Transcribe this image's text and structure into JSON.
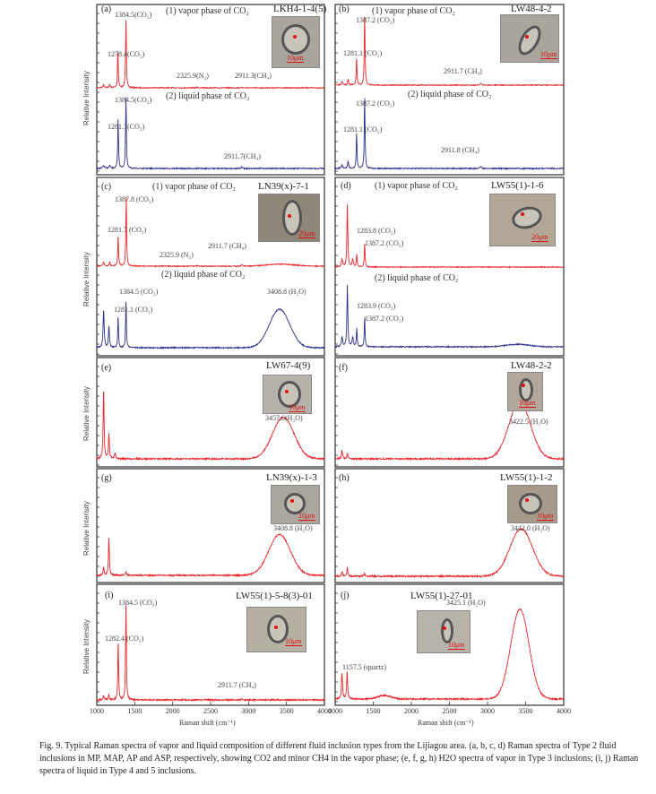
{
  "colors": {
    "vapor": "#e8262a",
    "liquid": "#2d2d8c",
    "frame": "#333333"
  },
  "axis": {
    "xlabel": "Raman shift (cm⁻¹)",
    "ylabel": "Relative Intensity",
    "xticks": [
      "1000",
      "1500",
      "2000",
      "2500",
      "3000",
      "3500",
      "4000"
    ]
  },
  "chart_data": [
    {
      "panel": "(a)",
      "type": "line",
      "sample": "LKH4-1-4(5)",
      "xlim": [
        1000,
        4000
      ],
      "traces": [
        {
          "name": "(1) vapor phase of CO₂",
          "color": "vapor",
          "peaks": [
            [
              1090,
              0.04,
              12
            ],
            [
              1170,
              0.04,
              10
            ],
            [
              1278.4,
              0.55,
              6
            ],
            [
              1384.5,
              1.0,
              6
            ],
            [
              2325.9,
              0.01,
              8
            ],
            [
              2911.3,
              0.01,
              8
            ]
          ],
          "labels": [
            "1384.5(CO₂)",
            "1278.4(CO₂)",
            "2325.9(N₂)",
            "2911.3(CH₄)"
          ]
        },
        {
          "name": "(2) liquid phase of CO₂",
          "color": "liquid",
          "peaks": [
            [
              1090,
              0.04,
              12
            ],
            [
              1170,
              0.04,
              10
            ],
            [
              1281.1,
              0.7,
              6
            ],
            [
              1384.5,
              1.0,
              6
            ],
            [
              2911.7,
              0.02,
              8
            ]
          ],
          "labels": [
            "1384.5(CO₂)",
            "1281.1(CO₂)",
            "2911.7(CH₄)"
          ]
        }
      ]
    },
    {
      "panel": "(b)",
      "type": "line",
      "sample": "LW48-4-2",
      "xlim": [
        1000,
        4000
      ],
      "traces": [
        {
          "name": "(1) vapor phase of CO₂",
          "color": "vapor",
          "peaks": [
            [
              1090,
              0.05,
              10
            ],
            [
              1170,
              0.08,
              8
            ],
            [
              1281.1,
              0.38,
              6
            ],
            [
              1387.2,
              1.0,
              6
            ],
            [
              2911.7,
              0.02,
              10
            ]
          ],
          "labels": [
            "1387.2 (CO₂)",
            "1281.1 (CO₂)",
            "2911.7 (CH₄)"
          ]
        },
        {
          "name": "(2) liquid phase of CO₂",
          "color": "liquid",
          "peaks": [
            [
              1090,
              0.05,
              10
            ],
            [
              1170,
              0.1,
              8
            ],
            [
              1281.1,
              0.5,
              6
            ],
            [
              1387.2,
              1.0,
              6
            ],
            [
              2911.8,
              0.03,
              10
            ]
          ],
          "labels": [
            "1387.2 (CO₂)",
            "1281.1 (CO₂)",
            "2911.8 (CH₄)"
          ]
        }
      ]
    },
    {
      "panel": "(c)",
      "type": "line",
      "sample": "LN39(x)-7-1",
      "xlim": [
        1000,
        4000
      ],
      "traces": [
        {
          "name": "(1) vapor phase of CO₂",
          "color": "vapor",
          "peaks": [
            [
              1090,
              0.06,
              10
            ],
            [
              1170,
              0.06,
              8
            ],
            [
              1281.7,
              0.45,
              6
            ],
            [
              1387.8,
              1.0,
              6
            ],
            [
              2325.9,
              0.01,
              8
            ],
            [
              2911.7,
              0.02,
              10
            ],
            [
              3420,
              0.03,
              250
            ]
          ],
          "labels": [
            "1387.8 (CO₂)",
            "1281.7 (CO₂)",
            "2325.9 (N₂)",
            "2911.7 (CH₄)"
          ]
        },
        {
          "name": "(2) liquid phase of CO₂",
          "color": "liquid",
          "peaks": [
            [
              1090,
              0.55,
              8
            ],
            [
              1160,
              0.3,
              8
            ],
            [
              1281.1,
              0.45,
              6
            ],
            [
              1384.5,
              0.65,
              6
            ],
            [
              3408.8,
              0.55,
              190
            ]
          ],
          "labels": [
            "1384.5 (CO₂)",
            "1281.1 (CO₂)",
            "3408.8 (H₂O)"
          ]
        }
      ]
    },
    {
      "panel": "(d)",
      "type": "line",
      "sample": "LW55(1)-1-6",
      "xlim": [
        1000,
        4000
      ],
      "traces": [
        {
          "name": "(1) vapor phase of CO₂",
          "color": "vapor",
          "peaks": [
            [
              1090,
              0.12,
              10
            ],
            [
              1160,
              1.0,
              7
            ],
            [
              1230,
              0.12,
              10
            ],
            [
              1283.8,
              0.2,
              6
            ],
            [
              1387.2,
              0.38,
              6
            ]
          ],
          "labels": [
            "1283.8 (CO₂)",
            "1387.2 (CO₂)"
          ]
        },
        {
          "name": "(2) liquid phase of CO₂",
          "color": "liquid",
          "peaks": [
            [
              1090,
              0.15,
              10
            ],
            [
              1160,
              1.0,
              7
            ],
            [
              1230,
              0.15,
              10
            ],
            [
              1283.9,
              0.3,
              6
            ],
            [
              1387.2,
              0.48,
              6
            ],
            [
              3400,
              0.04,
              220
            ]
          ],
          "labels": [
            "1283.9 (CO₂)",
            "1387.2 (CO₂)"
          ]
        }
      ]
    },
    {
      "panel": "(e)",
      "type": "line",
      "sample": "LW67-4(9)",
      "xlim": [
        1000,
        4000
      ],
      "traces": [
        {
          "color": "vapor",
          "peaks": [
            [
              1090,
              1.0,
              7
            ],
            [
              1160,
              0.35,
              7
            ],
            [
              1240,
              0.08,
              8
            ],
            [
              3457.6,
              0.58,
              200
            ]
          ],
          "labels": [
            "3457.6(H₂O)"
          ]
        }
      ]
    },
    {
      "panel": "(f)",
      "type": "line",
      "sample": "LW48-2-2",
      "xlim": [
        1000,
        4000
      ],
      "traces": [
        {
          "color": "vapor",
          "peaks": [
            [
              1090,
              0.1,
              8
            ],
            [
              1160,
              0.06,
              8
            ],
            [
              3422.5,
              0.66,
              200
            ]
          ],
          "labels": [
            "3422.5 (H₂O)"
          ]
        }
      ]
    },
    {
      "panel": "(g)",
      "type": "line",
      "sample": "LN39(x)-1-3",
      "xlim": [
        1000,
        4000
      ],
      "traces": [
        {
          "color": "vapor",
          "peaks": [
            [
              1090,
              0.12,
              8
            ],
            [
              1160,
              0.55,
              7
            ],
            [
              1384,
              0.06,
              8
            ],
            [
              3408.8,
              0.6,
              200
            ]
          ],
          "labels": [
            "3408.8 (H₂O)"
          ]
        }
      ]
    },
    {
      "panel": "(h)",
      "type": "line",
      "sample": "LW55(1)-1-2",
      "xlim": [
        1000,
        4000
      ],
      "traces": [
        {
          "color": "vapor",
          "peaks": [
            [
              1090,
              0.06,
              8
            ],
            [
              1160,
              0.12,
              7
            ],
            [
              1384,
              0.04,
              8
            ],
            [
              3442.0,
              0.66,
              210
            ]
          ],
          "labels": [
            "3442.0 (H₂O)"
          ]
        }
      ]
    },
    {
      "panel": "(i)",
      "type": "line",
      "sample": "LW55(1)-5-8(3)-01",
      "xlim": [
        1000,
        4000
      ],
      "traces": [
        {
          "color": "vapor",
          "peaks": [
            [
              1090,
              0.04,
              10
            ],
            [
              1160,
              0.05,
              8
            ],
            [
              1282.4,
              0.62,
              6
            ],
            [
              1384.5,
              1.0,
              6
            ],
            [
              2911.7,
              0.01,
              10
            ]
          ],
          "labels": [
            "1384.5 (CO₂)",
            "1282.4 (CO₂)",
            "2911.7 (CH₄)"
          ]
        }
      ]
    },
    {
      "panel": "(j)",
      "type": "line",
      "sample": "LW55(1)-27-01",
      "xlim": [
        1000,
        4000
      ],
      "traces": [
        {
          "color": "vapor",
          "peaks": [
            [
              1090,
              0.3,
              8
            ],
            [
              1157.5,
              0.31,
              7
            ],
            [
              1650,
              0.04,
              120
            ],
            [
              3425.1,
              1.0,
              170
            ]
          ],
          "labels": [
            "3425.1 (H₂O)",
            "1157.5 (quartz)"
          ]
        }
      ]
    }
  ],
  "insets": {
    "scale_10": "10μm",
    "scale_20": "20μm",
    "point1": "1",
    "point2": "2"
  },
  "caption": "Fig. 9. Typical Raman spectra of vapor and liquid composition of different fluid inclusion types from the Lijiagou area. (a, b, c, d) Raman spectra of Type 2 fluid inclusions in MP, MAP, AP and ASP, respectively, showing CO2 and minor CH4 in the vapor phase; (e, f, g, h) H2O spectra of vapor in Type 3 inclusions; (i, j) Raman spectra of liquid in Type 4 and 5 inclusions."
}
